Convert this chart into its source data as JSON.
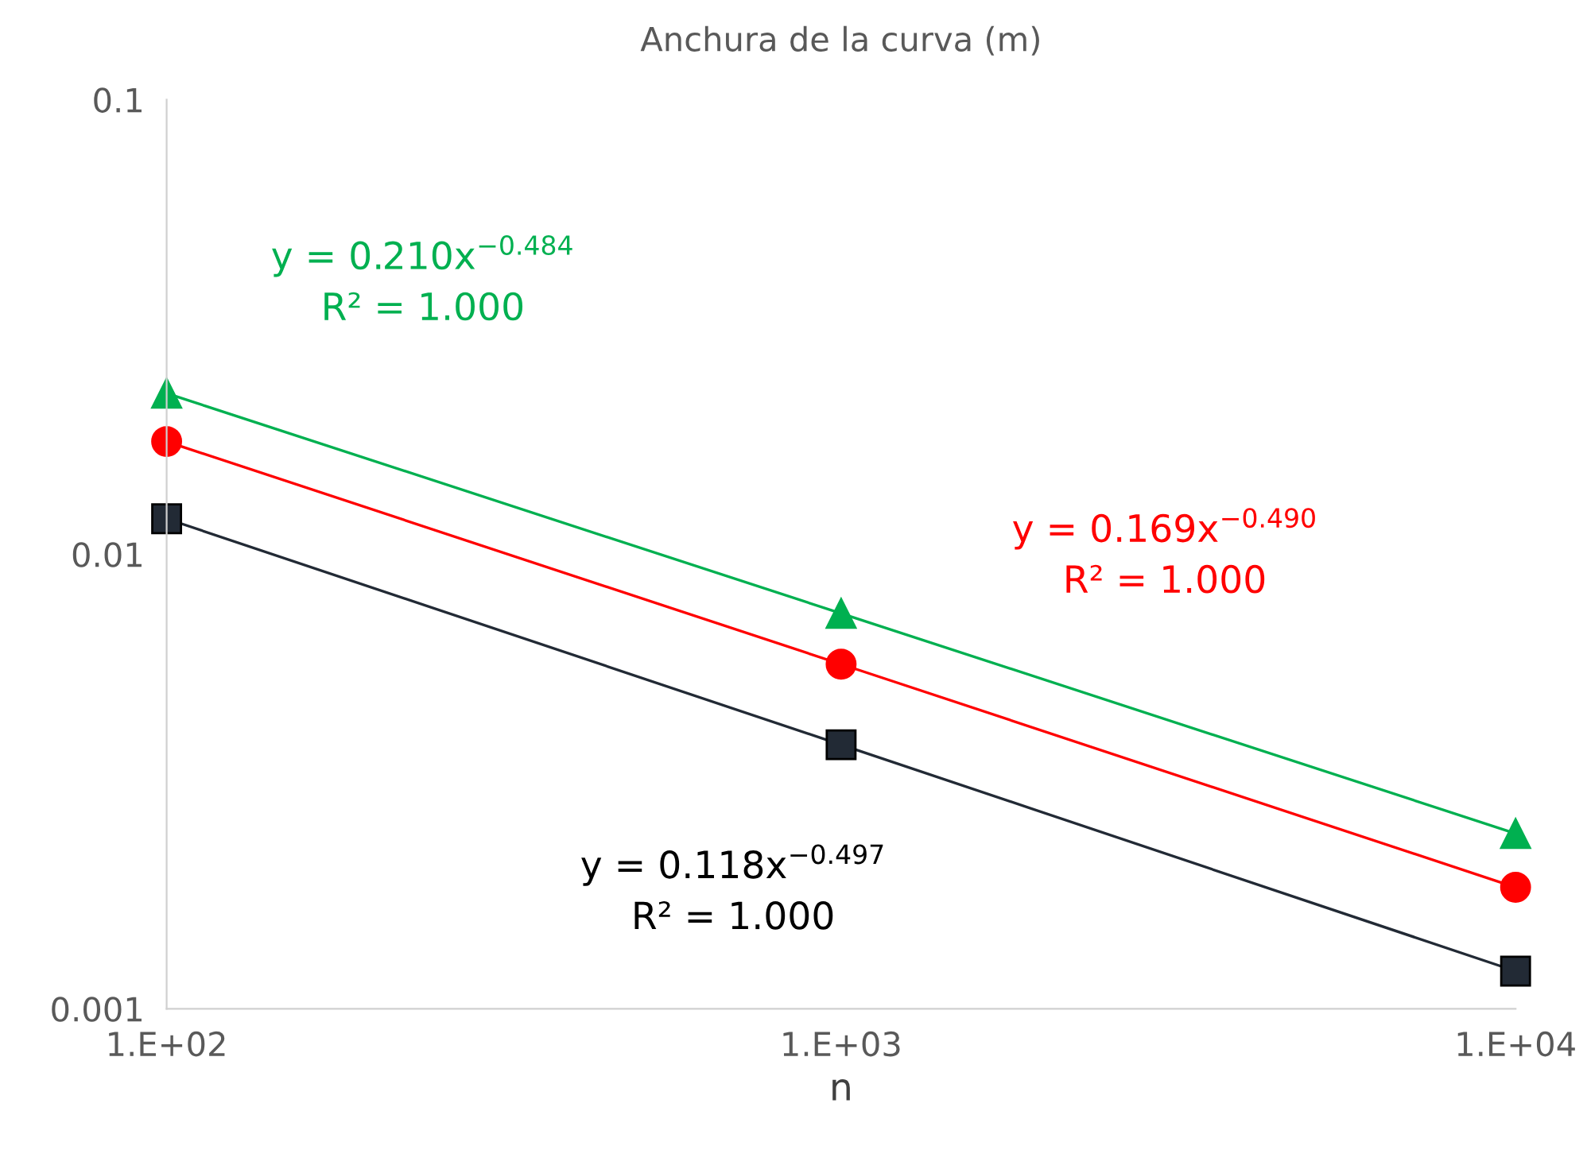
{
  "chart_data": {
    "type": "line",
    "title": "Anchura de la curva (m)",
    "xlabel": "n",
    "categories": [
      "1.E+02",
      "1.E+03",
      "1.E+04"
    ],
    "series": [
      {
        "color": "#00b050",
        "marker": "triangle",
        "values": [
          0.0226,
          0.00741,
          0.00243
        ]
      },
      {
        "color": "#ff0000",
        "marker": "circle",
        "values": [
          0.0177,
          0.00573,
          0.00185
        ]
      },
      {
        "color": "#222a35",
        "marker": "square",
        "values": [
          0.01197,
          0.00381,
          0.00121
        ]
      }
    ],
    "annotations": [
      "y = 0.210x$^{−0.484}$\nR² = 1.000",
      "y = 0.169x$^{−0.490}$\nR² = 1.000",
      "y = 0.118x$^{−0.497}$\nR² = 1.000"
    ],
    "log": "y",
    "grid": false,
    "legend": false,
    "line_style": "solid",
    "ylim": [
      0.001,
      0.1
    ],
    "yticks": [
      {
        "value": 0.001,
        "label": "0.001"
      },
      {
        "value": 0.01,
        "label": "0.01"
      },
      {
        "value": 0.1,
        "label": "0.1"
      }
    ]
  }
}
